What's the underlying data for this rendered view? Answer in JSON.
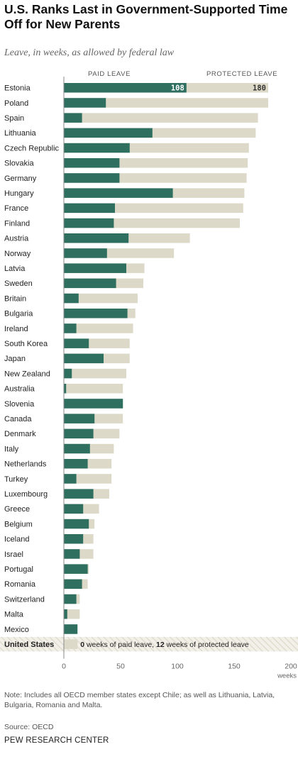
{
  "title": "U.S. Ranks Last in Government-Supported Time Off for New Parents",
  "subtitle": "Leave, in weeks, as allowed by federal law",
  "header": {
    "paid": "PAID LEAVE",
    "protected": "PROTECTED LEAVE"
  },
  "chart_data": {
    "type": "bar",
    "orientation": "horizontal",
    "stacked": "overlay",
    "categories": [
      "Estonia",
      "Poland",
      "Spain",
      "Lithuania",
      "Czech Republic",
      "Slovakia",
      "Germany",
      "Hungary",
      "France",
      "Finland",
      "Austria",
      "Norway",
      "Latvia",
      "Sweden",
      "Britain",
      "Bulgaria",
      "Ireland",
      "South Korea",
      "Japan",
      "New Zealand",
      "Australia",
      "Slovenia",
      "Canada",
      "Denmark",
      "Italy",
      "Netherlands",
      "Turkey",
      "Luxembourg",
      "Greece",
      "Belgium",
      "Iceland",
      "Israel",
      "Portugal",
      "Romania",
      "Switzerland",
      "Malta",
      "Mexico",
      "United States"
    ],
    "series": [
      {
        "name": "PAID LEAVE",
        "color": "#2e6f5f",
        "values": [
          108,
          37,
          16,
          78,
          58,
          49,
          49,
          96,
          45,
          44,
          57,
          38,
          55,
          46,
          13,
          56,
          11,
          22,
          35,
          7,
          2,
          52,
          27,
          26,
          23,
          21,
          11,
          26,
          17,
          22,
          17,
          14,
          21,
          16,
          11,
          3,
          12,
          0
        ]
      },
      {
        "name": "PROTECTED LEAVE",
        "color": "#ddd9c8",
        "values": [
          180,
          180,
          171,
          169,
          163,
          162,
          161,
          159,
          158,
          155,
          111,
          97,
          71,
          70,
          65,
          63,
          61,
          58,
          58,
          55,
          52,
          52,
          52,
          49,
          44,
          42,
          42,
          40,
          31,
          27,
          26,
          26,
          22,
          21,
          14,
          14,
          12,
          12
        ]
      }
    ],
    "data_labels": {
      "paid": "108",
      "protected": "180"
    },
    "highlight": {
      "category": "United States",
      "n1": "0",
      "t1": " weeks of paid leave, ",
      "n2": "12",
      "t2": " weeks of protected leave"
    },
    "xlim": [
      0,
      200
    ],
    "xticks": [
      "0",
      "50",
      "100",
      "150",
      "200"
    ],
    "xunit": "weeks",
    "grid": false
  },
  "note": "Note: Includes all OECD member states except Chile; as well as Lithuania, Latvia, Bulgaria, Romania and Malta.",
  "source": "Source: OECD",
  "credit": "PEW RESEARCH CENTER"
}
